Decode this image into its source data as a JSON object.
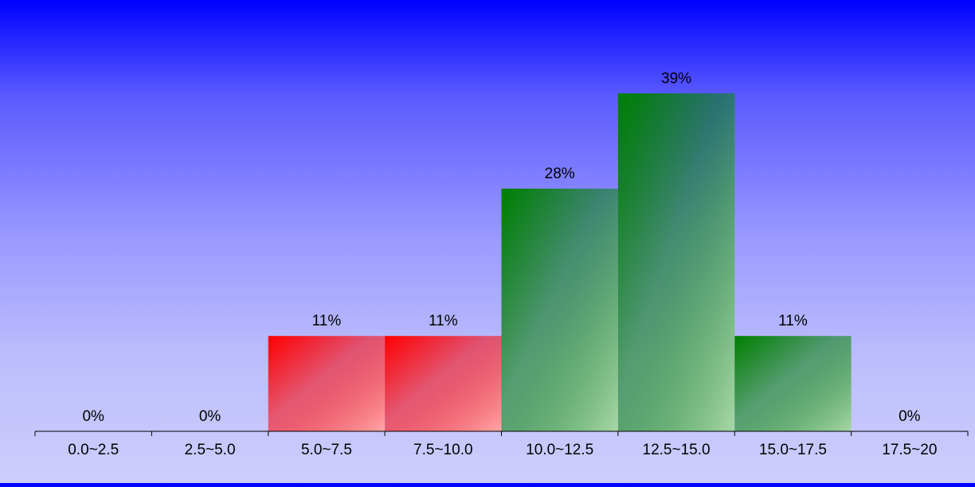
{
  "chart_data": {
    "type": "bar",
    "categories": [
      "0.0~2.5",
      "2.5~5.0",
      "5.0~7.5",
      "7.5~10.0",
      "10.0~12.5",
      "12.5~15.0",
      "15.0~17.5",
      "17.5~20"
    ],
    "values": [
      0,
      0,
      11,
      11,
      28,
      39,
      11,
      0
    ],
    "value_labels": [
      "0%",
      "0%",
      "11%",
      "11%",
      "28%",
      "39%",
      "11%",
      "0%"
    ],
    "bar_colors": [
      "red",
      "red",
      "red",
      "red",
      "green",
      "green",
      "green",
      "green"
    ],
    "value_unit": "%",
    "title": "",
    "xlabel": "",
    "ylabel": "",
    "ylim": [
      0,
      45
    ],
    "grid": false,
    "legend": "none"
  },
  "colors": {
    "background_top": "#0000ff",
    "background_bottom": "#cdcdfd",
    "red_bar_strong": "#ff0000",
    "red_bar_light": "#ffa8a8",
    "green_bar_strong": "#008000",
    "green_bar_light": "#a8d8a8",
    "axis": "#000000"
  }
}
